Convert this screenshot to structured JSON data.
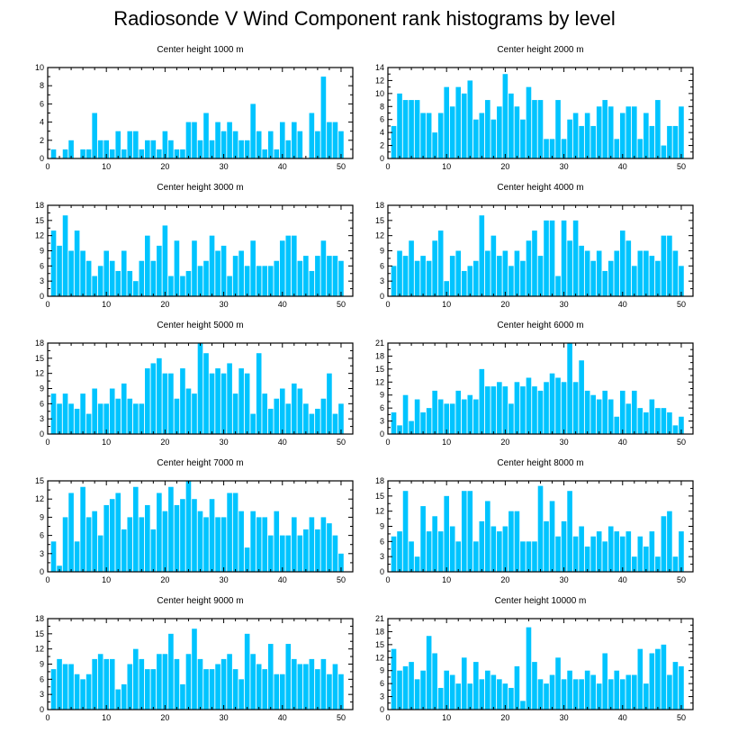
{
  "title": "Radiosonde V Wind Component rank histograms by level",
  "colors": {
    "bar": "#00c4ff",
    "axis": "#000000",
    "background": "#ffffff"
  },
  "chart_data": [
    {
      "type": "bar",
      "title": "Center height 1000 m",
      "xlim": [
        0,
        52
      ],
      "xticks": [
        0,
        10,
        20,
        30,
        40,
        50
      ],
      "ylim": [
        0,
        10
      ],
      "yticks": [
        0,
        2,
        4,
        6,
        8,
        10
      ],
      "values": [
        1,
        0,
        1,
        2,
        0,
        1,
        1,
        5,
        2,
        2,
        1,
        3,
        1,
        3,
        3,
        1,
        2,
        2,
        1,
        3,
        2,
        1,
        1,
        4,
        4,
        2,
        5,
        2,
        4,
        3,
        4,
        3,
        2,
        2,
        6,
        3,
        1,
        3,
        1,
        4,
        2,
        4,
        3,
        0,
        5,
        3,
        9,
        4,
        4,
        3
      ]
    },
    {
      "type": "bar",
      "title": "Center height 2000 m",
      "xlim": [
        0,
        52
      ],
      "xticks": [
        0,
        10,
        20,
        30,
        40,
        50
      ],
      "ylim": [
        0,
        14
      ],
      "yticks": [
        0,
        2,
        4,
        6,
        8,
        10,
        12,
        14
      ],
      "values": [
        5,
        10,
        9,
        9,
        9,
        7,
        7,
        4,
        7,
        11,
        8,
        11,
        10,
        12,
        6,
        7,
        9,
        6,
        8,
        13,
        10,
        8,
        6,
        11,
        9,
        9,
        3,
        3,
        9,
        3,
        6,
        7,
        5,
        7,
        5,
        8,
        9,
        8,
        3,
        7,
        8,
        8,
        3,
        7,
        5,
        9,
        2,
        5,
        5,
        8
      ]
    },
    {
      "type": "bar",
      "title": "Center height 3000 m",
      "xlim": [
        0,
        52
      ],
      "xticks": [
        0,
        10,
        20,
        30,
        40,
        50
      ],
      "ylim": [
        0,
        18
      ],
      "yticks": [
        0,
        3,
        6,
        9,
        12,
        15,
        18
      ],
      "values": [
        13,
        10,
        16,
        9,
        13,
        9,
        7,
        4,
        6,
        9,
        7,
        5,
        9,
        5,
        3,
        7,
        12,
        7,
        10,
        14,
        4,
        11,
        4,
        5,
        11,
        6,
        7,
        12,
        9,
        10,
        4,
        8,
        9,
        6,
        11,
        6,
        6,
        6,
        7,
        11,
        12,
        12,
        7,
        8,
        5,
        8,
        11,
        8,
        8,
        7
      ]
    },
    {
      "type": "bar",
      "title": "Center height 4000 m",
      "xlim": [
        0,
        52
      ],
      "xticks": [
        0,
        10,
        20,
        30,
        40,
        50
      ],
      "ylim": [
        0,
        18
      ],
      "yticks": [
        0,
        3,
        6,
        9,
        12,
        15,
        18
      ],
      "values": [
        6,
        9,
        8,
        11,
        7,
        8,
        7,
        11,
        13,
        3,
        8,
        9,
        5,
        6,
        7,
        16,
        9,
        12,
        8,
        9,
        6,
        9,
        7,
        11,
        13,
        8,
        15,
        15,
        4,
        15,
        11,
        15,
        10,
        9,
        7,
        9,
        5,
        7,
        9,
        13,
        11,
        6,
        9,
        9,
        8,
        7,
        12,
        12,
        9,
        6
      ]
    },
    {
      "type": "bar",
      "title": "Center height 5000 m",
      "xlim": [
        0,
        52
      ],
      "xticks": [
        0,
        10,
        20,
        30,
        40,
        50
      ],
      "ylim": [
        0,
        18
      ],
      "yticks": [
        0,
        3,
        6,
        9,
        12,
        15,
        18
      ],
      "values": [
        8,
        6,
        8,
        6,
        5,
        8,
        4,
        9,
        6,
        6,
        9,
        7,
        10,
        7,
        6,
        6,
        13,
        14,
        15,
        12,
        12,
        7,
        13,
        9,
        8,
        18,
        16,
        12,
        13,
        12,
        14,
        8,
        13,
        12,
        4,
        16,
        8,
        5,
        7,
        9,
        6,
        10,
        9,
        6,
        4,
        5,
        7,
        12,
        4,
        6
      ]
    },
    {
      "type": "bar",
      "title": "Center height 6000 m",
      "xlim": [
        0,
        52
      ],
      "xticks": [
        0,
        10,
        20,
        30,
        40,
        50
      ],
      "ylim": [
        0,
        21
      ],
      "yticks": [
        0,
        3,
        6,
        9,
        12,
        15,
        18,
        21
      ],
      "values": [
        5,
        2,
        9,
        3,
        8,
        5,
        6,
        10,
        8,
        7,
        7,
        10,
        8,
        9,
        8,
        15,
        11,
        11,
        12,
        11,
        7,
        12,
        11,
        13,
        11,
        10,
        12,
        14,
        13,
        12,
        21,
        12,
        17,
        10,
        9,
        8,
        10,
        8,
        4,
        10,
        7,
        10,
        6,
        5,
        8,
        6,
        6,
        5,
        2,
        4
      ]
    },
    {
      "type": "bar",
      "title": "Center height 7000 m",
      "xlim": [
        0,
        52
      ],
      "xticks": [
        0,
        10,
        20,
        30,
        40,
        50
      ],
      "ylim": [
        0,
        15
      ],
      "yticks": [
        0,
        3,
        6,
        9,
        12,
        15
      ],
      "values": [
        5,
        1,
        9,
        13,
        5,
        14,
        9,
        10,
        6,
        11,
        12,
        13,
        7,
        9,
        14,
        9,
        11,
        7,
        13,
        10,
        14,
        11,
        12,
        15,
        12,
        10,
        9,
        12,
        9,
        9,
        13,
        13,
        10,
        4,
        10,
        9,
        9,
        6,
        10,
        6,
        6,
        9,
        6,
        7,
        9,
        7,
        9,
        8,
        6,
        3
      ]
    },
    {
      "type": "bar",
      "title": "Center height 8000 m",
      "xlim": [
        0,
        52
      ],
      "xticks": [
        0,
        10,
        20,
        30,
        40,
        50
      ],
      "ylim": [
        0,
        18
      ],
      "yticks": [
        0,
        3,
        6,
        9,
        12,
        15,
        18
      ],
      "values": [
        7,
        8,
        16,
        6,
        3,
        13,
        8,
        11,
        8,
        15,
        9,
        6,
        16,
        16,
        6,
        10,
        14,
        9,
        8,
        9,
        12,
        12,
        6,
        6,
        6,
        17,
        10,
        14,
        7,
        10,
        16,
        7,
        9,
        5,
        7,
        8,
        6,
        9,
        8,
        7,
        8,
        3,
        7,
        5,
        8,
        3,
        11,
        12,
        3,
        8
      ]
    },
    {
      "type": "bar",
      "title": "Center height 9000 m",
      "xlim": [
        0,
        52
      ],
      "xticks": [
        0,
        10,
        20,
        30,
        40,
        50
      ],
      "ylim": [
        0,
        18
      ],
      "yticks": [
        0,
        3,
        6,
        9,
        12,
        15,
        18
      ],
      "values": [
        8,
        10,
        9,
        9,
        7,
        6,
        7,
        10,
        11,
        10,
        10,
        4,
        5,
        9,
        12,
        10,
        8,
        8,
        11,
        11,
        15,
        10,
        5,
        11,
        16,
        10,
        8,
        8,
        9,
        10,
        11,
        8,
        6,
        15,
        11,
        9,
        8,
        13,
        7,
        7,
        13,
        10,
        9,
        9,
        10,
        8,
        10,
        7,
        9,
        7
      ]
    },
    {
      "type": "bar",
      "title": "Center height 10000 m",
      "xlim": [
        0,
        52
      ],
      "xticks": [
        0,
        10,
        20,
        30,
        40,
        50
      ],
      "ylim": [
        0,
        21
      ],
      "yticks": [
        0,
        3,
        6,
        9,
        12,
        15,
        18,
        21
      ],
      "values": [
        14,
        9,
        10,
        11,
        7,
        9,
        17,
        13,
        5,
        9,
        8,
        6,
        12,
        6,
        11,
        7,
        9,
        8,
        7,
        6,
        5,
        10,
        2,
        19,
        11,
        7,
        6,
        8,
        12,
        7,
        9,
        7,
        7,
        9,
        8,
        6,
        13,
        7,
        9,
        7,
        8,
        8,
        14,
        6,
        13,
        14,
        15,
        8,
        11,
        10
      ]
    }
  ]
}
